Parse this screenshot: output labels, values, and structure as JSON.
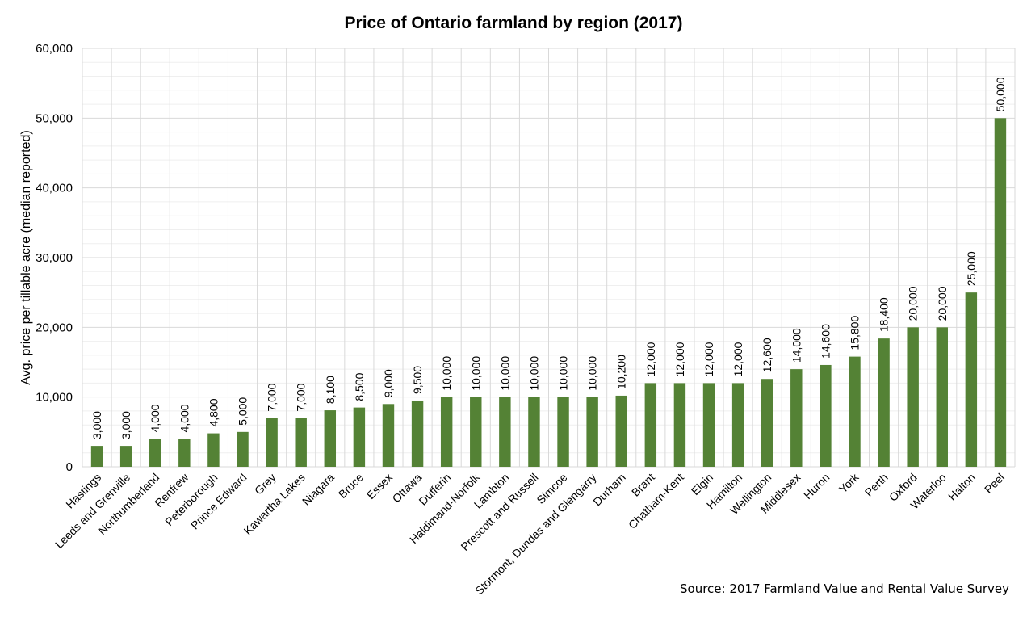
{
  "chart_data": {
    "type": "bar",
    "title": "Price of Ontario farmland by region (2017)",
    "xlabel": "",
    "ylabel": "Avg. price per tillable acre (median reported)",
    "ylim": [
      0,
      60000
    ],
    "yticks": [
      0,
      10000,
      20000,
      30000,
      40000,
      50000,
      60000
    ],
    "ytick_labels": [
      "0",
      "10,000",
      "20,000",
      "30,000",
      "40,000",
      "50,000",
      "60,000"
    ],
    "grid": {
      "major": true,
      "minor": true,
      "vertical": true
    },
    "bar_color": "#548235",
    "categories": [
      "Hastings",
      "Leeds and Grenville",
      "Northumberland",
      "Renfrew",
      "Peterborough",
      "Prince Edward",
      "Grey",
      "Kawartha Lakes",
      "Niagara",
      "Bruce",
      "Essex",
      "Ottawa",
      "Dufferin",
      "Haldimand-Norfolk",
      "Lambton",
      "Prescott and Russell",
      "Simcoe",
      "Stormont, Dundas and Glengarry",
      "Durham",
      "Brant",
      "Chatham-Kent",
      "Elgin",
      "Hamilton",
      "Wellington",
      "Middlesex",
      "Huron",
      "York",
      "Perth",
      "Oxford",
      "Waterloo",
      "Halton",
      "Peel"
    ],
    "values": [
      3000,
      3000,
      4000,
      4000,
      4800,
      5000,
      7000,
      7000,
      8100,
      8500,
      9000,
      9500,
      10000,
      10000,
      10000,
      10000,
      10000,
      10000,
      10200,
      12000,
      12000,
      12000,
      12000,
      12600,
      14000,
      14600,
      15800,
      18400,
      20000,
      20000,
      25000,
      50000
    ],
    "data_labels": [
      "3,000",
      "3,000",
      "4,000",
      "4,000",
      "4,800",
      "5,000",
      "7,000",
      "7,000",
      "8,100",
      "8,500",
      "9,000",
      "9,500",
      "10,000",
      "10,000",
      "10,000",
      "10,000",
      "10,000",
      "10,000",
      "10,200",
      "12,000",
      "12,000",
      "12,000",
      "12,000",
      "12,600",
      "14,000",
      "14,600",
      "15,800",
      "18,400",
      "20,000",
      "20,000",
      "25,000",
      "50,000"
    ]
  },
  "source": "Source: 2017 Farmland Value and Rental Value Survey"
}
